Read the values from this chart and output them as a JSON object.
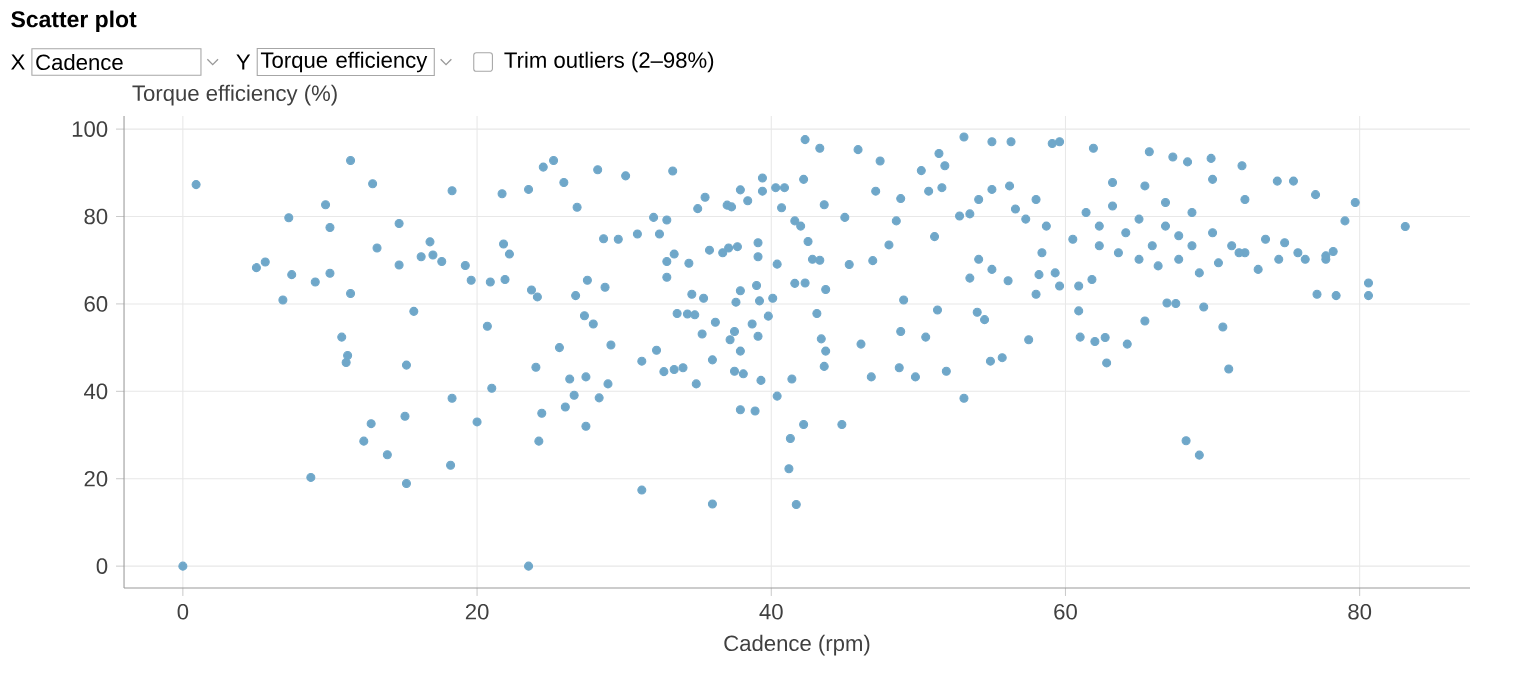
{
  "chart_data": {
    "type": "scatter",
    "title": "Scatter plot",
    "annotations": [
      "X",
      "Cadence",
      "Y",
      "Torque efficiency",
      "Trim outliers (2–98%)"
    ],
    "xlabel": "Cadence (rpm)",
    "ylabel": "Torque efficiency (%)",
    "xlim": [
      -4,
      87.5
    ],
    "ylim": [
      -5,
      103
    ],
    "xticks": [
      0,
      20,
      40,
      60,
      80
    ],
    "yticks": [
      0,
      20,
      40,
      60,
      80,
      100
    ],
    "grid": true,
    "marker": "circle",
    "series": [
      {
        "color": "#6fa7c9",
        "x": [
          0,
          0.9,
          11.4,
          12.9,
          9.7,
          7.2,
          10,
          5,
          5.6,
          7.4,
          6.8,
          9,
          10,
          11.4,
          13.2,
          14.7,
          14.7,
          16.2,
          17,
          16.8,
          17.6,
          15.7,
          10.8,
          11.2,
          11.1,
          15.2,
          12.8,
          12.3,
          13.9,
          8.7,
          15.2,
          15.1,
          18.3,
          18.2,
          20,
          21,
          20.7,
          18.3,
          19.2,
          19.6,
          21.7,
          21.8,
          22.2,
          20.9,
          21.9,
          23.5,
          23.5,
          23.7,
          24.1,
          24,
          24.4,
          24.2,
          24.5,
          25.2,
          25.9,
          26.8,
          28.2,
          30.1,
          28.6,
          29.6,
          26.7,
          27.5,
          28.7,
          27.3,
          27.9,
          25.6,
          29.1,
          26.3,
          27.4,
          26.6,
          26,
          27.4,
          28.3,
          28.9,
          31.2,
          30.9,
          32,
          33.3,
          32.9,
          32.4,
          33.4,
          32.9,
          32.9,
          34.4,
          35,
          35.5,
          33.6,
          34.3,
          34.8,
          34.6,
          35.4,
          35.3,
          36.2,
          32.2,
          31.2,
          32.7,
          33.4,
          34,
          34.9,
          36,
          36,
          35.8,
          36.7,
          37.1,
          37.7,
          37,
          37.3,
          37.9,
          38.4,
          37.5,
          37.9,
          37.2,
          37.5,
          38.1,
          37.9,
          38.9,
          39.3,
          39.1,
          38.7,
          37.9,
          37.6,
          39,
          39.2,
          40.1,
          39.1,
          39.1,
          39.4,
          39.4,
          40.3,
          40.4,
          39.8,
          40.4,
          41.3,
          41.2,
          41.7,
          41.4,
          42.3,
          43.3,
          42.2,
          44.8,
          53.1,
          43.1,
          43.7,
          43.6,
          43.4,
          46.1,
          46.8,
          48.7,
          49.8,
          48.8,
          50.5,
          51.9,
          51.3,
          49,
          54,
          54.5,
          54.9,
          55.7,
          57.5,
          58.2,
          58,
          60.9,
          61,
          62,
          62.7,
          62.8,
          64.2,
          65.4,
          66.9,
          67.5,
          69.4,
          70.7,
          71.1,
          68.2,
          69.1,
          77.1,
          78.4,
          80.6,
          80.6,
          79.7,
          79,
          83.1,
          77,
          78.2,
          77.7,
          53.1,
          55,
          56.3,
          59.1,
          59.6,
          61.9,
          65.7,
          67.3,
          68.3,
          69.9,
          72,
          45.9,
          47.4,
          51.4,
          50.2,
          74.4,
          75.5,
          40.9,
          40.7,
          42.2,
          43.6,
          45,
          41.6,
          42,
          42.5,
          42.8,
          43.3,
          45.3,
          41.6,
          42.3,
          43.7,
          46.9,
          48,
          48.5,
          47.1,
          48.8,
          50.7,
          51.1,
          51.6,
          52.8,
          53.5,
          54.1,
          55,
          56.1,
          51.8,
          53.5,
          54.1,
          55,
          56.2,
          56.6,
          57.3,
          58,
          58.7,
          58.4,
          59.3,
          60.5,
          61.4,
          62.3,
          63.2,
          64.1,
          65,
          65.9,
          66.8,
          67.7,
          68.6,
          70,
          71.3,
          72.2,
          73.6,
          74.9,
          76.3,
          77.7,
          75.8,
          74.5,
          73.1,
          71.8,
          70.4,
          69.1,
          67.7,
          66.3,
          65,
          63.6,
          62.3,
          60.9,
          59.6,
          61.8,
          63.2,
          65.4,
          70,
          72.2,
          68.6,
          66.8
        ],
        "values": [
          0,
          87.3,
          92.8,
          87.5,
          82.7,
          79.7,
          77.5,
          68.3,
          69.6,
          66.7,
          60.9,
          65,
          67,
          62.4,
          72.8,
          78.4,
          68.9,
          70.8,
          71.2,
          74.2,
          69.7,
          58.3,
          52.4,
          48.2,
          46.6,
          46,
          32.6,
          28.6,
          25.5,
          20.3,
          18.9,
          34.3,
          38.4,
          23.1,
          33,
          40.7,
          54.9,
          85.9,
          68.8,
          65.4,
          85.2,
          73.7,
          71.4,
          65,
          65.6,
          0,
          86.2,
          63.2,
          61.6,
          45.5,
          35,
          28.6,
          91.3,
          92.8,
          87.8,
          82.1,
          90.7,
          89.3,
          74.9,
          74.8,
          61.9,
          65.4,
          63.8,
          57.3,
          55.4,
          50,
          50.6,
          42.8,
          43.3,
          39.1,
          36.4,
          32,
          38.5,
          41.7,
          17.4,
          76,
          79.8,
          90.4,
          79.2,
          76,
          71.4,
          69.7,
          66.1,
          69.3,
          81.8,
          84.4,
          57.8,
          57.7,
          57.5,
          62.2,
          61.3,
          53.1,
          55.8,
          49.4,
          46.9,
          44.5,
          45,
          45.4,
          41.7,
          47.2,
          14.2,
          72.3,
          71.7,
          72.8,
          73.1,
          82.6,
          82.2,
          86.1,
          83.6,
          53.7,
          49.2,
          51.8,
          44.6,
          44,
          35.8,
          35.5,
          42.5,
          52.6,
          55.4,
          63,
          60.4,
          64.2,
          60.7,
          61.3,
          74,
          70.8,
          88.8,
          85.8,
          86.6,
          69.1,
          57.2,
          38.9,
          29.2,
          22.3,
          14.1,
          42.8,
          97.6,
          95.6,
          32.4,
          32.4,
          38.4,
          57.8,
          49.2,
          45.7,
          52,
          50.8,
          43.3,
          45.4,
          43.3,
          53.7,
          52.4,
          44.6,
          58.6,
          60.9,
          58.1,
          56.4,
          46.9,
          47.7,
          51.8,
          66.7,
          62.2,
          58.4,
          52.4,
          51.4,
          52.3,
          46.5,
          50.8,
          56.1,
          60.2,
          60.1,
          59.3,
          54.7,
          45.1,
          28.7,
          25.4,
          62.2,
          61.9,
          64.8,
          61.9,
          83.2,
          79,
          77.7,
          85,
          72,
          70.2,
          98.2,
          97.1,
          97.1,
          96.7,
          97.1,
          95.6,
          94.8,
          93.6,
          92.5,
          93.3,
          91.6,
          95.3,
          92.7,
          94.4,
          90.5,
          88.1,
          88.1,
          86.6,
          82,
          88.5,
          82.7,
          79.8,
          79,
          77.8,
          74.3,
          70.2,
          70,
          69,
          64.7,
          64.8,
          63.3,
          69.9,
          73.5,
          79,
          85.8,
          84.1,
          85.8,
          75.4,
          86.6,
          80.1,
          65.9,
          70.2,
          67.9,
          65.3,
          91.6,
          80.6,
          83.9,
          86.2,
          87,
          81.7,
          79.4,
          83.9,
          77.8,
          71.7,
          67.1,
          74.8,
          80.9,
          77.8,
          82.4,
          76.3,
          79.4,
          73.3,
          77.8,
          75.6,
          73.3,
          76.3,
          73.3,
          71.7,
          74.8,
          74,
          70.2,
          71,
          71.7,
          70.2,
          67.9,
          71.7,
          69.4,
          67.1,
          70.2,
          68.7,
          70.2,
          71.7,
          73.3,
          64.1,
          64.1,
          65.6,
          87.8,
          87,
          88.5,
          83.9,
          80.9,
          83.2
        ]
      }
    ]
  }
}
